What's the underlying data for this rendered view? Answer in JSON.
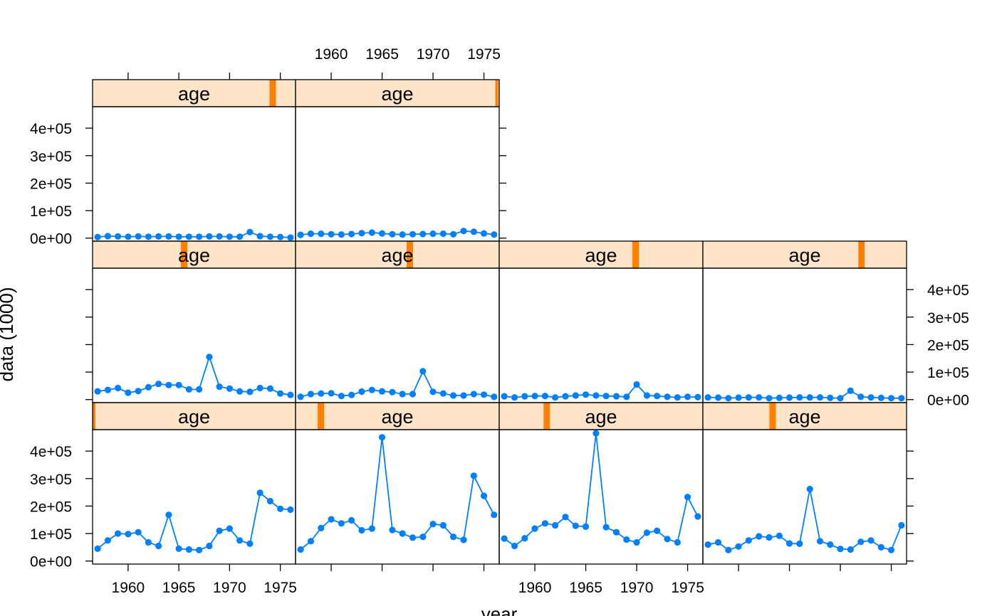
{
  "colors": {
    "strip_bg": "#ffe4c8",
    "strip_bar": "#ff7f00",
    "series": "#0080ff",
    "axis": "#000000"
  },
  "chart_data": {
    "type": "line",
    "layout": "lattice 4 columns x 3 rows (last panel first on bottom-left)",
    "xlabel": "year",
    "ylabel": "data (1000)",
    "xlim": [
      1956.5,
      1976.5
    ],
    "ylim": [
      -11000,
      478000
    ],
    "x_ticks": [
      1960,
      1965,
      1970,
      1975
    ],
    "x_tick_labels": [
      "1960",
      "1965",
      "1970",
      "1975"
    ],
    "y_ticks": [
      0,
      100000,
      200000,
      300000,
      400000
    ],
    "y_tick_labels": [
      "0e+00",
      "1e+05",
      "2e+05",
      "3e+05",
      "4e+05"
    ],
    "years": [
      1957,
      1958,
      1959,
      1960,
      1961,
      1962,
      1963,
      1964,
      1965,
      1966,
      1967,
      1968,
      1969,
      1970,
      1971,
      1972,
      1973,
      1974,
      1975,
      1976
    ],
    "strip_label": "age",
    "panels": [
      {
        "row": 3,
        "col": 1,
        "strip": "age",
        "level_fraction": 0.0,
        "values": [
          45000,
          75000,
          100000,
          98000,
          105000,
          68000,
          55000,
          168000,
          45000,
          42000,
          40000,
          55000,
          110000,
          118000,
          75000,
          63000,
          248000,
          218000,
          190000,
          187000
        ]
      },
      {
        "row": 3,
        "col": 2,
        "strip": "age",
        "level_fraction": 0.111,
        "values": [
          42000,
          72000,
          120000,
          152000,
          137000,
          148000,
          112000,
          118000,
          450000,
          113000,
          100000,
          85000,
          88000,
          135000,
          130000,
          88000,
          77000,
          310000,
          237000,
          168000
        ]
      },
      {
        "row": 3,
        "col": 3,
        "strip": "age",
        "level_fraction": 0.222,
        "values": [
          82000,
          55000,
          83000,
          118000,
          137000,
          130000,
          160000,
          128000,
          125000,
          465000,
          123000,
          105000,
          78000,
          68000,
          103000,
          110000,
          80000,
          68000,
          233000,
          162000
        ]
      },
      {
        "row": 3,
        "col": 4,
        "strip": "age",
        "level_fraction": 0.333,
        "values": [
          60000,
          68000,
          40000,
          53000,
          75000,
          90000,
          86000,
          92000,
          64000,
          63000,
          262000,
          72000,
          60000,
          44000,
          42000,
          70000,
          75000,
          50000,
          40000,
          130000
        ]
      },
      {
        "row": 2,
        "col": 1,
        "strip": "age",
        "level_fraction": 0.444,
        "values": [
          30000,
          35000,
          42000,
          25000,
          31000,
          45000,
          57000,
          53000,
          53000,
          37000,
          37000,
          155000,
          47000,
          40000,
          30000,
          28000,
          42000,
          40000,
          22000,
          17000
        ]
      },
      {
        "row": 2,
        "col": 2,
        "strip": "age",
        "level_fraction": 0.556,
        "values": [
          10000,
          20000,
          22000,
          23000,
          13000,
          17000,
          29000,
          35000,
          30000,
          27000,
          20000,
          20000,
          103000,
          28000,
          22000,
          15000,
          15000,
          20000,
          18000,
          10000
        ]
      },
      {
        "row": 2,
        "col": 3,
        "strip": "age",
        "level_fraction": 0.667,
        "values": [
          12000,
          8000,
          12000,
          13000,
          13000,
          8000,
          12000,
          15000,
          18000,
          15000,
          13000,
          12000,
          10000,
          55000,
          15000,
          13000,
          10000,
          8000,
          10000,
          9000
        ]
      },
      {
        "row": 2,
        "col": 4,
        "strip": "age",
        "level_fraction": 0.778,
        "values": [
          8000,
          7000,
          5000,
          7000,
          8000,
          8000,
          5000,
          6000,
          7000,
          8000,
          8000,
          8000,
          6000,
          5000,
          32000,
          10000,
          8000,
          6000,
          5000,
          5000
        ]
      },
      {
        "row": 1,
        "col": 1,
        "strip": "age",
        "level_fraction": 0.889,
        "values": [
          4000,
          7000,
          6000,
          5000,
          6000,
          5000,
          6000,
          6000,
          5000,
          5000,
          5000,
          6000,
          6000,
          5000,
          5000,
          22000,
          7000,
          5000,
          4000,
          2000
        ]
      },
      {
        "row": 1,
        "col": 2,
        "strip": "age",
        "level_fraction": 1.0,
        "values": [
          12000,
          16000,
          16000,
          14000,
          13000,
          15000,
          18000,
          20000,
          17000,
          14000,
          13000,
          14000,
          15000,
          16000,
          16000,
          14000,
          26000,
          23000,
          17000,
          13000
        ]
      }
    ]
  }
}
